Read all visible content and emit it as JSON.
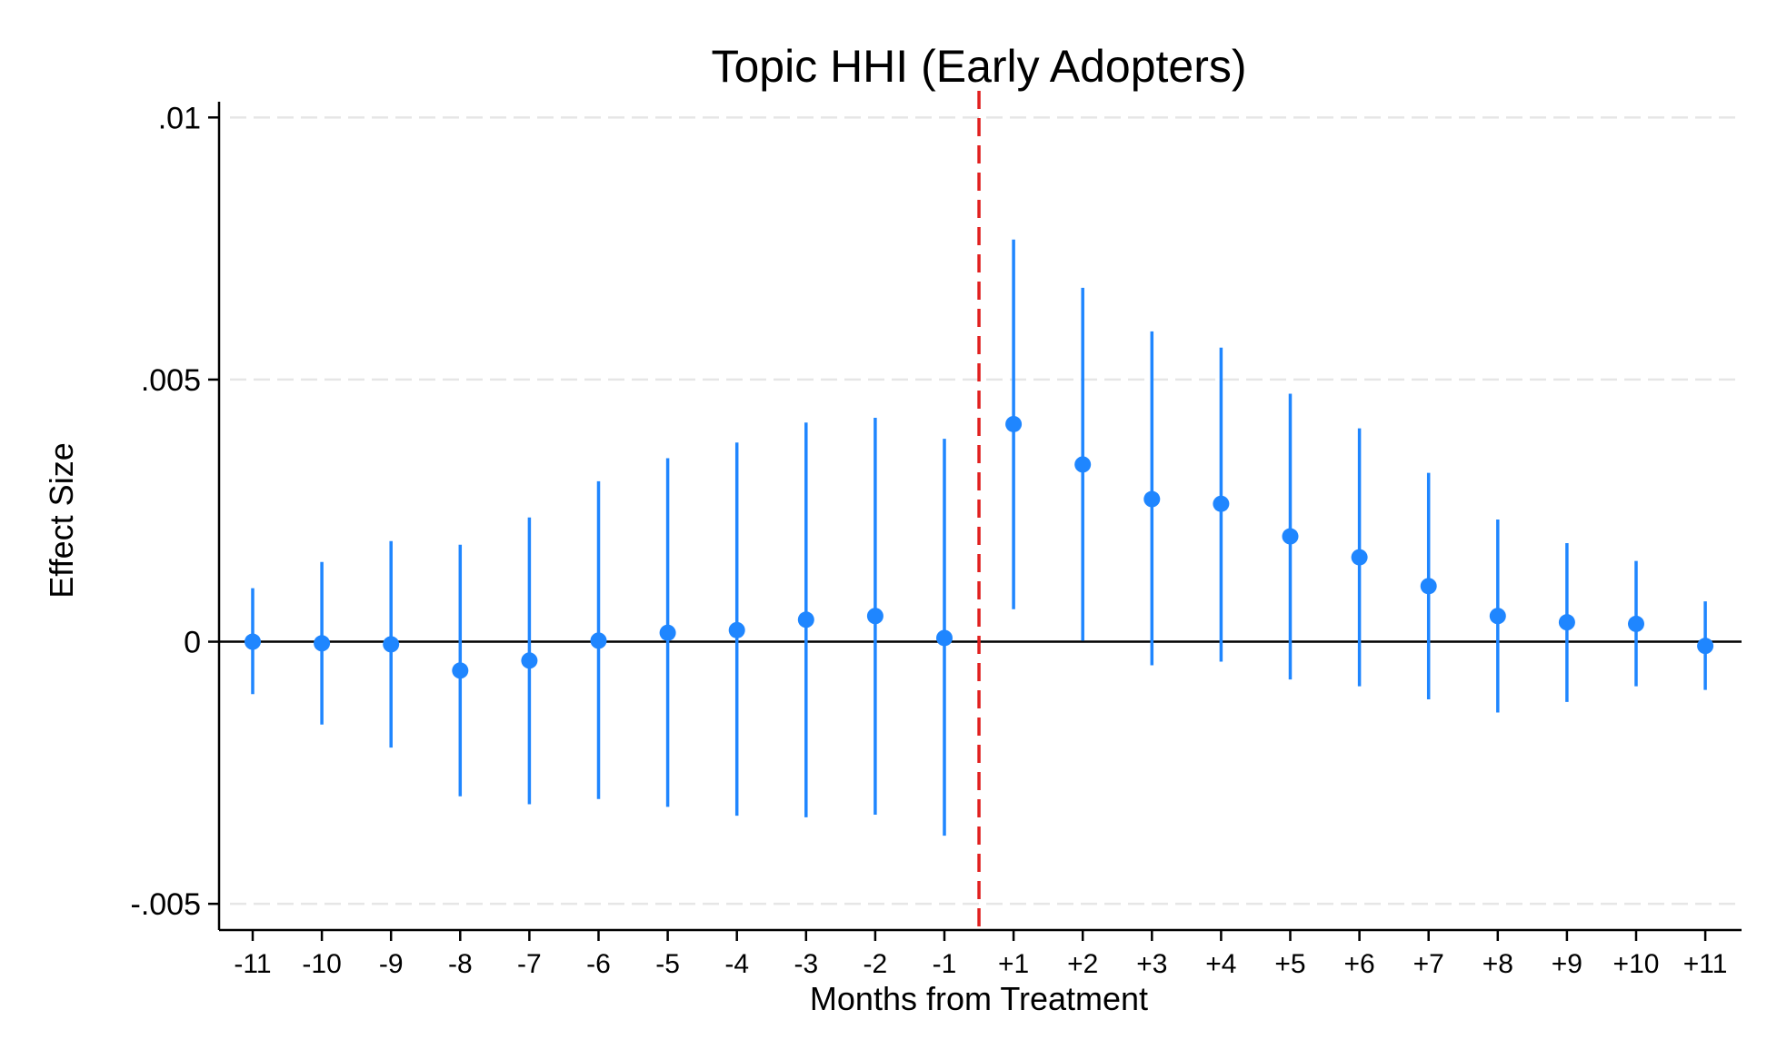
{
  "chart_data": {
    "type": "scatter",
    "title": "Topic HHI (Early Adopters)",
    "xlabel": "Months from Treatment",
    "ylabel": "Effect Size",
    "categories": [
      "-11",
      "-10",
      "-9",
      "-8",
      "-7",
      "-6",
      "-5",
      "-4",
      "-3",
      "-2",
      "-1",
      "+1",
      "+2",
      "+3",
      "+4",
      "+5",
      "+6",
      "+7",
      "+8",
      "+9",
      "+10",
      "+11"
    ],
    "series": [
      {
        "values": [
          0.0,
          -3e-05,
          -5e-05,
          -0.00055,
          -0.00036,
          2e-05,
          0.00017,
          0.00022,
          0.00042,
          0.00049,
          7e-05,
          0.00415,
          0.00338,
          0.00272,
          0.00263,
          0.00201,
          0.00161,
          0.00106,
          0.00049,
          0.00037,
          0.00034,
          -8e-05
        ],
        "lower": [
          -0.001,
          -0.00158,
          -0.00202,
          -0.00295,
          -0.0031,
          -0.003,
          -0.00315,
          -0.00332,
          -0.00335,
          -0.0033,
          -0.0037,
          0.00062,
          2e-05,
          -0.00045,
          -0.00038,
          -0.00072,
          -0.00085,
          -0.0011,
          -0.00135,
          -0.00115,
          -0.00085,
          -0.00092
        ],
        "upper": [
          0.00102,
          0.00152,
          0.00192,
          0.00185,
          0.00237,
          0.00306,
          0.0035,
          0.0038,
          0.00418,
          0.00427,
          0.00387,
          0.00767,
          0.00675,
          0.00592,
          0.00561,
          0.00473,
          0.00407,
          0.00322,
          0.00233,
          0.00188,
          0.00154,
          0.00077
        ]
      }
    ],
    "ylim": [
      -0.0055,
      0.0103
    ],
    "yticks": [
      {
        "value": 0.01,
        "label": ".01"
      },
      {
        "value": 0.005,
        "label": ".005"
      },
      {
        "value": 0,
        "label": "0"
      },
      {
        "value": -0.005,
        "label": "-.005"
      }
    ],
    "gridlines": [
      0.01,
      0.005,
      -0.005
    ],
    "zero_line": 0,
    "treatment_line": "between -1 and +1",
    "grid": true,
    "legend": "none",
    "colors": {
      "marker": "#1f86ff",
      "ci": "#1f86ff",
      "treatment_line": "#e0201f",
      "gridline": "#e6e6e6",
      "axis": "#000000"
    }
  }
}
